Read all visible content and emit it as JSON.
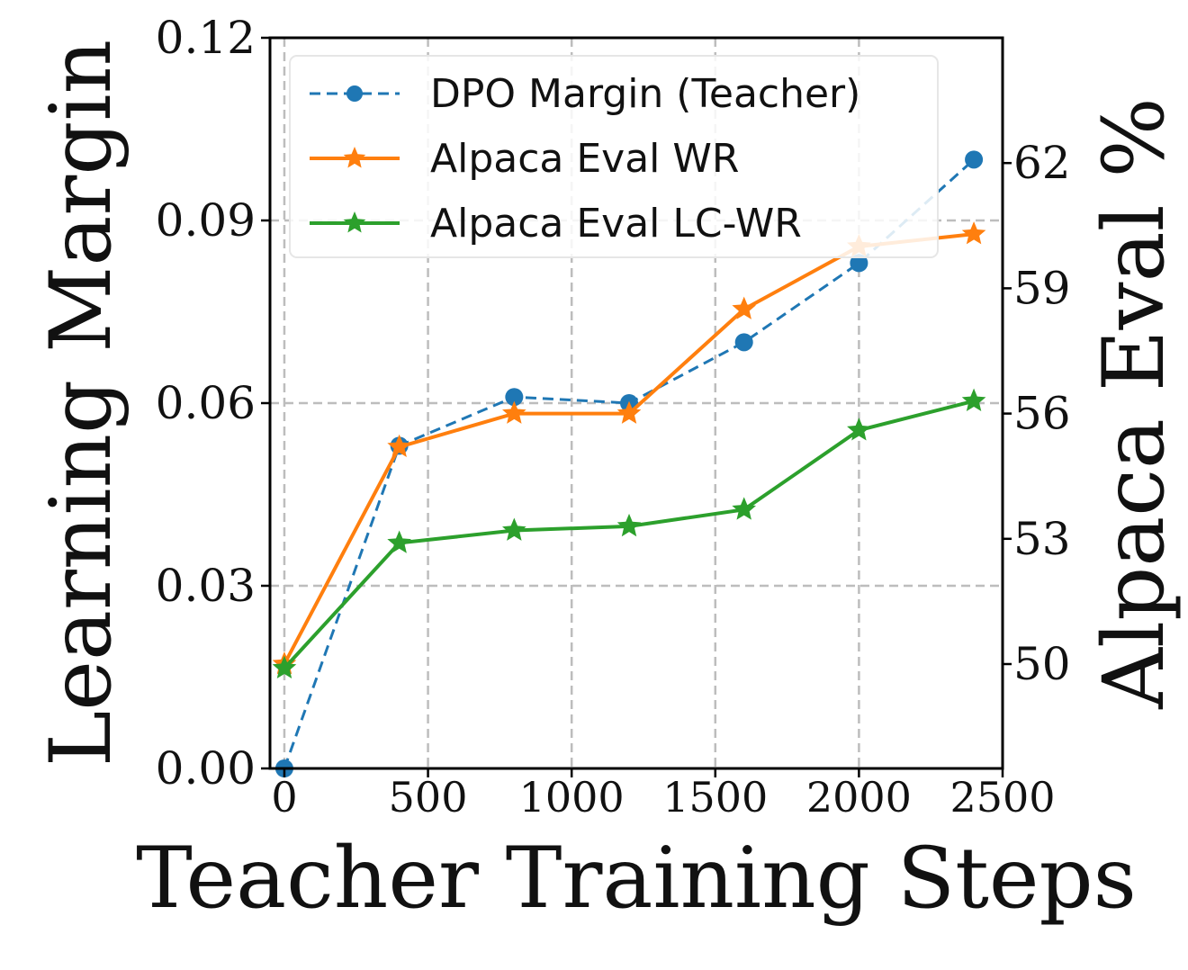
{
  "chart_data": {
    "type": "line",
    "title": "",
    "xlabel": "Teacher Training Steps",
    "ylabel_left": "Learning Margin",
    "ylabel_right": "Alpaca Eval %",
    "xlim": [
      -50,
      2500
    ],
    "xticks": [
      0,
      500,
      1000,
      1500,
      2000,
      2500
    ],
    "xtick_labels": [
      "0",
      "500",
      "1000",
      "1500",
      "2000",
      "2500"
    ],
    "ylim_left": [
      0.0,
      0.12
    ],
    "yticks_left": [
      0.0,
      0.03,
      0.06,
      0.09,
      0.12
    ],
    "ytick_labels_left": [
      "0.00",
      "0.03",
      "0.06",
      "0.09",
      "0.12"
    ],
    "ylim_right": [
      47.5,
      65.0
    ],
    "yticks_right": [
      50,
      53,
      56,
      59,
      62
    ],
    "ytick_labels_right": [
      "50",
      "53",
      "56",
      "59",
      "62"
    ],
    "grid": true,
    "legend_position": "top-left",
    "x": [
      0,
      400,
      800,
      1200,
      1600,
      2000,
      2400
    ],
    "series": [
      {
        "name": "DPO Margin (Teacher)",
        "axis": "left",
        "values": [
          0.0,
          0.053,
          0.061,
          0.06,
          0.07,
          0.083,
          0.1
        ],
        "color": "#1f77b4",
        "marker": "circle",
        "dashed": true
      },
      {
        "name": "Alpaca Eval WR",
        "axis": "right",
        "values": [
          50.0,
          55.2,
          56.0,
          56.0,
          58.5,
          60.0,
          60.3
        ],
        "color": "#ff7f0e",
        "marker": "star",
        "dashed": false
      },
      {
        "name": "Alpaca Eval LC-WR",
        "axis": "right",
        "values": [
          49.9,
          52.9,
          53.2,
          53.3,
          53.7,
          55.6,
          56.3
        ],
        "color": "#2ca02c",
        "marker": "star",
        "dashed": false
      }
    ]
  }
}
